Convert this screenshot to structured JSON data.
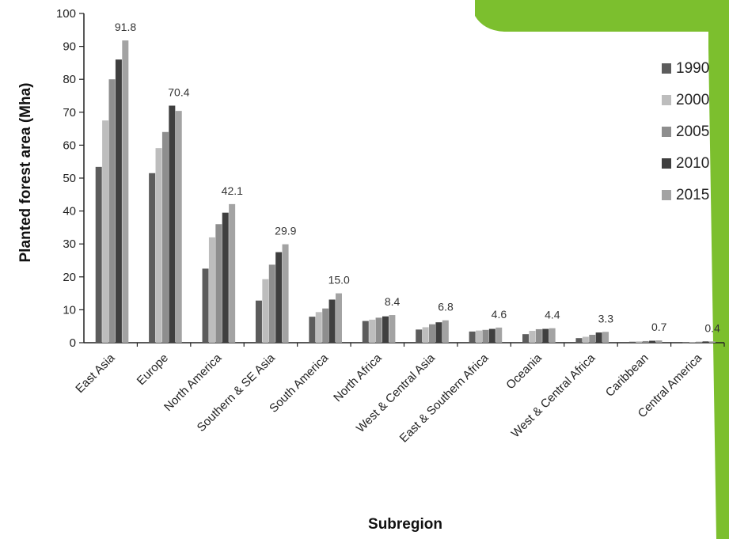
{
  "chart_data": {
    "type": "bar",
    "xlabel": "Subregion",
    "ylabel": "Planted forest area (Mha)",
    "ylim": [
      0,
      100
    ],
    "yticks": [
      0,
      10,
      20,
      30,
      40,
      50,
      60,
      70,
      80,
      90,
      100
    ],
    "grid": false,
    "legend_position": "right",
    "categories": [
      "East Asia",
      "Europe",
      "North America",
      "Southern & SE Asia",
      "South America",
      "North Africa",
      "West & Central Asia",
      "East & Southern Africa",
      "Oceania",
      "West & Central Africa",
      "Caribbean",
      "Central America"
    ],
    "series": [
      {
        "name": "1990",
        "color": "#5c5c5c",
        "values": [
          53.4,
          51.5,
          22.5,
          12.8,
          7.9,
          6.6,
          4.0,
          3.4,
          2.6,
          1.4,
          0.3,
          0.1
        ]
      },
      {
        "name": "2000",
        "color": "#bdbdbd",
        "values": [
          67.5,
          59.1,
          32.0,
          19.3,
          9.3,
          7.0,
          4.7,
          3.7,
          3.6,
          1.8,
          0.4,
          0.2
        ]
      },
      {
        "name": "2005",
        "color": "#8e8e8e",
        "values": [
          80.0,
          64.0,
          36.0,
          23.7,
          10.4,
          7.6,
          5.6,
          3.9,
          4.1,
          2.4,
          0.5,
          0.3
        ]
      },
      {
        "name": "2010",
        "color": "#3f3f3f",
        "values": [
          86.0,
          72.0,
          39.5,
          27.5,
          13.1,
          8.0,
          6.2,
          4.2,
          4.2,
          3.1,
          0.6,
          0.4
        ]
      },
      {
        "name": "2015",
        "color": "#a3a3a3",
        "values": [
          91.8,
          70.4,
          42.1,
          29.9,
          15.0,
          8.4,
          6.8,
          4.6,
          4.4,
          3.3,
          0.7,
          0.4
        ]
      }
    ],
    "data_labels": [
      "91.8",
      "70.4",
      "42.1",
      "29.9",
      "15.0",
      "8.4",
      "6.8",
      "4.6",
      "4.4",
      "3.3",
      "0.7",
      "0.4"
    ],
    "decor_color": "#7cbf2e"
  }
}
